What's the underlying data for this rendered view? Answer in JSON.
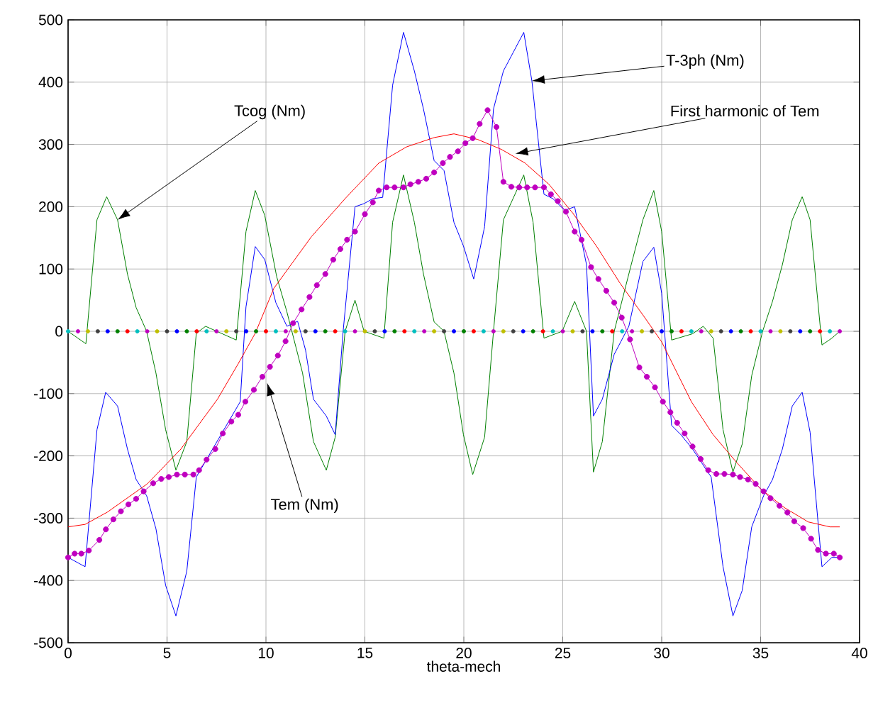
{
  "chart_data": {
    "type": "line",
    "xlabel": "theta-mech",
    "xlim": [
      0,
      40
    ],
    "ylim": [
      -500,
      500
    ],
    "xticks": [
      0,
      5,
      10,
      15,
      20,
      25,
      30,
      35,
      40
    ],
    "yticks": [
      -500,
      -400,
      -300,
      -200,
      -100,
      0,
      100,
      200,
      300,
      400,
      500
    ],
    "grid": true,
    "series": [
      {
        "type": "scatter",
        "marker": "circle",
        "x": [
          0,
          0.5,
          1,
          1.5,
          2,
          2.5,
          3,
          3.5,
          4,
          4.5,
          5,
          5.5,
          6,
          6.5,
          7,
          7.5,
          8,
          8.5,
          9,
          9.5,
          10,
          10.5,
          11,
          11.5,
          12,
          12.5,
          13,
          13.5,
          14,
          14.5,
          15,
          15.5,
          16,
          16.5,
          17,
          17.5,
          18,
          18.5,
          19,
          19.5,
          20,
          20.5,
          21,
          21.5,
          22,
          22.5,
          23,
          23.5,
          24,
          24.5,
          25,
          25.5,
          26,
          26.5,
          27,
          27.5,
          28,
          28.5,
          29,
          29.5,
          30,
          30.5,
          31,
          31.5,
          32,
          32.5,
          33,
          33.5,
          34,
          34.5,
          35,
          35.5,
          36,
          36.5,
          37,
          37.5,
          38,
          38.5,
          39
        ],
        "values": [
          0,
          0,
          0,
          0,
          0,
          0,
          0,
          0,
          0,
          0,
          0,
          0,
          0,
          0,
          0,
          0,
          0,
          0,
          0,
          0,
          0,
          0,
          0,
          0,
          0,
          0,
          0,
          0,
          0,
          0,
          0,
          0,
          0,
          0,
          0,
          0,
          0,
          0,
          0,
          0,
          0,
          0,
          0,
          0,
          0,
          0,
          0,
          0,
          0,
          0,
          0,
          0,
          0,
          0,
          0,
          0,
          0,
          0,
          0,
          0,
          0,
          0,
          0,
          0,
          0,
          0,
          0,
          0,
          0,
          0,
          0,
          0,
          0,
          0,
          0,
          0,
          0,
          0,
          0
        ],
        "colors": [
          "#00bfbf",
          "#bf00bf",
          "#bfbf00",
          "#404040",
          "#0000ff",
          "#008000",
          "#ff0000",
          "#00bfbf",
          "#bf00bf",
          "#bfbf00",
          "#404040",
          "#0000ff",
          "#008000",
          "#ff0000",
          "#00bfbf",
          "#bf00bf",
          "#bfbf00",
          "#404040",
          "#0000ff",
          "#008000",
          "#ff0000",
          "#00bfbf",
          "#bf00bf",
          "#bfbf00",
          "#404040",
          "#0000ff",
          "#008000",
          "#ff0000",
          "#00bfbf",
          "#bf00bf",
          "#bfbf00",
          "#404040",
          "#0000ff",
          "#008000",
          "#ff0000",
          "#00bfbf",
          "#bf00bf",
          "#bfbf00",
          "#404040",
          "#0000ff",
          "#008000",
          "#ff0000",
          "#00bfbf",
          "#bf00bf",
          "#bfbf00",
          "#404040",
          "#0000ff",
          "#008000",
          "#ff0000",
          "#00bfbf",
          "#bf00bf",
          "#bfbf00",
          "#404040",
          "#0000ff",
          "#008000",
          "#ff0000",
          "#00bfbf",
          "#bf00bf",
          "#bfbf00",
          "#404040",
          "#0000ff",
          "#008000",
          "#ff0000",
          "#00bfbf",
          "#bf00bf",
          "#bfbf00",
          "#404040",
          "#0000ff",
          "#008000",
          "#ff0000",
          "#00bfbf",
          "#bf00bf",
          "#bfbf00",
          "#404040",
          "#0000ff",
          "#008000",
          "#ff0000",
          "#00bfbf",
          "#bf00bf"
        ]
      },
      {
        "color": "#008000",
        "x": [
          0,
          0.9,
          1.46,
          1.95,
          2.5,
          3.0,
          3.44,
          3.97,
          4.44,
          4.93,
          5.45,
          6.0,
          6.48,
          6.95,
          8.5,
          8.99,
          9.46,
          9.94,
          10.54,
          11.06,
          11.85,
          12.4,
          13.05,
          13.5,
          14.0,
          14.5,
          14.96,
          15.96,
          16.4,
          16.95,
          17.5,
          17.96,
          18.5,
          19.0,
          19.5,
          19.98,
          20.45,
          21.05,
          21.5,
          22.0,
          23.03,
          23.5,
          24.05,
          24.97,
          25.6,
          26.2,
          26.55,
          27.0,
          27.6,
          28.46,
          29.05,
          29.6,
          30.0,
          30.5,
          31.56,
          32.1,
          32.6,
          33.1,
          33.6,
          34.07,
          34.55,
          35.1,
          35.6,
          36.1,
          36.6,
          37.1,
          37.5,
          38.1,
          38.6,
          39.0
        ],
        "values": [
          0,
          -20,
          179,
          216,
          179,
          92,
          38,
          0,
          -67,
          -158,
          -223,
          -177,
          -3,
          8,
          -14,
          160,
          226,
          186,
          88,
          31,
          -67,
          -177,
          -223,
          -170,
          0,
          50,
          0,
          -11,
          175,
          251,
          175,
          92,
          15,
          0,
          -67,
          -166,
          -230,
          -170,
          0,
          179,
          251,
          175,
          -11,
          0,
          48,
          0,
          -226,
          -177,
          0,
          107,
          179,
          226,
          160,
          -14,
          -4,
          8,
          -11,
          -158,
          -226,
          -181,
          -71,
          0,
          48,
          107,
          179,
          216,
          179,
          -22,
          -11,
          0
        ]
      },
      {
        "color": "#0000ff",
        "x": [
          0,
          0.86,
          1.46,
          1.9,
          2.5,
          3.0,
          3.44,
          3.97,
          4.44,
          4.93,
          5.45,
          6.0,
          6.48,
          8.7,
          8.99,
          9.46,
          9.94,
          10.5,
          11.06,
          11.6,
          12.0,
          12.4,
          13.05,
          13.5,
          13.9,
          14.5,
          14.96,
          15.4,
          15.9,
          16.4,
          16.95,
          17.5,
          17.96,
          18.5,
          19.0,
          19.5,
          19.98,
          20.5,
          21.05,
          21.5,
          22.0,
          22.5,
          23.03,
          23.44,
          24.05,
          24.5,
          25.1,
          25.6,
          26.2,
          26.55,
          27.0,
          27.6,
          28.34,
          29.05,
          29.6,
          30.0,
          30.5,
          30.97,
          31.56,
          32.5,
          33.1,
          33.6,
          34.07,
          34.55,
          35.15,
          35.6,
          36.1,
          36.6,
          37.1,
          37.5,
          38.1,
          38.6,
          39.0
        ],
        "values": [
          -363,
          -378,
          -158,
          -98,
          -120,
          -189,
          -238,
          -264,
          -317,
          -408,
          -457,
          -385,
          -234,
          -113,
          39,
          136,
          115,
          46,
          8,
          16,
          -30,
          -109,
          -136,
          -166,
          0,
          200,
          205,
          213,
          215,
          395,
          480,
          418,
          357,
          274,
          258,
          175,
          137,
          84,
          168,
          357,
          418,
          448,
          480,
          402,
          220,
          213,
          194,
          200,
          107,
          -136,
          -109,
          -37,
          8,
          112,
          135,
          61,
          -151,
          -166,
          -189,
          -234,
          -378,
          -457,
          -416,
          -314,
          -264,
          -238,
          -189,
          -120,
          -98,
          -162,
          -378,
          -363,
          -363
        ]
      },
      {
        "color": "#ff0000",
        "x": [
          0,
          0.86,
          2,
          4,
          5.7,
          7.55,
          8.6,
          9.46,
          10.4,
          12.3,
          14.0,
          15.7,
          17.1,
          18.5,
          19.5,
          20.7,
          21.9,
          23.1,
          24.3,
          25.5,
          26.7,
          27.9,
          29.1,
          30.0,
          31.5,
          32.6,
          33.8,
          35.0,
          36.2,
          37.4,
          38.5,
          39
        ],
        "values": [
          -314,
          -310,
          -290,
          -245,
          -189,
          -109,
          -52,
          -3,
          69,
          152,
          213,
          270,
          296,
          311,
          317,
          308,
          292,
          270,
          236,
          190,
          137,
          77,
          24,
          -17,
          -113,
          -166,
          -211,
          -253,
          -283,
          -306,
          -314,
          -314
        ]
      },
      {
        "color": "#bf00bf",
        "marker": "circle",
        "x": [
          0,
          0.33,
          0.67,
          1.05,
          1.58,
          1.91,
          2.29,
          2.67,
          3.05,
          3.44,
          3.82,
          4.3,
          4.71,
          5.09,
          5.5,
          5.9,
          6.33,
          6.62,
          7.0,
          7.44,
          7.82,
          8.25,
          8.6,
          8.96,
          9.39,
          9.82,
          10.2,
          10.6,
          10.99,
          11.37,
          11.8,
          12.2,
          12.57,
          13.0,
          13.4,
          13.76,
          14.1,
          14.5,
          15.0,
          15.4,
          15.7,
          16.1,
          16.5,
          16.95,
          17.3,
          17.7,
          18.1,
          18.5,
          18.94,
          19.3,
          19.7,
          20.08,
          20.45,
          20.8,
          21.2,
          21.65,
          22.0,
          22.4,
          22.8,
          23.2,
          23.6,
          24.05,
          24.4,
          24.75,
          25.16,
          25.6,
          25.95,
          26.43,
          26.8,
          27.2,
          27.6,
          27.98,
          28.4,
          28.87,
          29.25,
          29.66,
          30.06,
          30.44,
          30.78,
          31.16,
          31.56,
          31.97,
          32.35,
          32.76,
          33.17,
          33.6,
          33.96,
          34.36,
          34.75,
          35.15,
          35.5,
          35.95,
          36.35,
          36.7,
          37.15,
          37.55,
          37.9,
          38.3,
          38.7,
          39.0
        ],
        "values": [
          -363,
          -357,
          -357,
          -352,
          -335,
          -318,
          -302,
          -289,
          -278,
          -269,
          -257,
          -244,
          -237,
          -234,
          -230,
          -230,
          -230,
          -223,
          -206,
          -189,
          -164,
          -145,
          -134,
          -113,
          -94,
          -73,
          -57,
          -39,
          -16,
          13,
          35,
          55,
          74,
          92,
          115,
          132,
          147,
          160,
          188,
          207,
          226,
          231,
          231,
          231,
          236,
          240,
          245,
          255,
          270,
          280,
          289,
          302,
          310,
          333,
          355,
          328,
          240,
          232,
          231,
          231,
          231,
          231,
          220,
          209,
          192,
          160,
          147,
          103,
          84,
          65,
          46,
          22,
          -13,
          -58,
          -73,
          -90,
          -113,
          -130,
          -147,
          -164,
          -185,
          -205,
          -223,
          -229,
          -229,
          -230,
          -234,
          -238,
          -245,
          -257,
          -268,
          -280,
          -291,
          -305,
          -316,
          -333,
          -351,
          -357,
          -357,
          -363
        ]
      }
    ],
    "annotations": [
      {
        "text": "Tcog (Nm)",
        "x": 2.5,
        "y": 179
      },
      {
        "text": "T-3ph (Nm)",
        "x": 23.44,
        "y": 402
      },
      {
        "text": "First harmonic of Tem",
        "x": 22.6,
        "y": 285
      },
      {
        "text": "Tem (Nm)",
        "x": 10.06,
        "y": -83
      }
    ]
  }
}
